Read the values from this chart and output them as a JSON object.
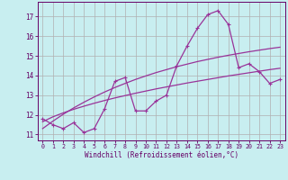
{
  "xlabel": "Windchill (Refroidissement éolien,°C)",
  "background_color": "#c8eef0",
  "grid_color": "#b0b0b0",
  "line_color": "#993399",
  "x_values": [
    0,
    1,
    2,
    3,
    4,
    5,
    6,
    7,
    8,
    9,
    10,
    11,
    12,
    13,
    14,
    15,
    16,
    17,
    18,
    19,
    20,
    21,
    22,
    23
  ],
  "main_y": [
    11.8,
    11.5,
    11.3,
    11.6,
    11.1,
    11.3,
    12.3,
    13.7,
    13.9,
    12.2,
    12.2,
    12.7,
    13.0,
    14.5,
    15.5,
    16.4,
    17.1,
    17.3,
    16.6,
    14.4,
    14.6,
    14.2,
    13.6,
    13.8
  ],
  "reg_y1": [
    11.65,
    11.9,
    12.1,
    12.28,
    12.44,
    12.59,
    12.73,
    12.86,
    12.98,
    13.1,
    13.21,
    13.32,
    13.42,
    13.52,
    13.62,
    13.71,
    13.8,
    13.89,
    13.98,
    14.06,
    14.14,
    14.22,
    14.3,
    14.37
  ],
  "reg_y2": [
    11.3,
    11.68,
    12.03,
    12.35,
    12.64,
    12.91,
    13.16,
    13.39,
    13.6,
    13.8,
    13.98,
    14.15,
    14.3,
    14.45,
    14.58,
    14.71,
    14.82,
    14.93,
    15.03,
    15.12,
    15.21,
    15.29,
    15.37,
    15.44
  ],
  "xlim": [
    -0.5,
    23.5
  ],
  "ylim": [
    10.7,
    17.75
  ],
  "yticks": [
    11,
    12,
    13,
    14,
    15,
    16,
    17
  ],
  "xticks": [
    0,
    1,
    2,
    3,
    4,
    5,
    6,
    7,
    8,
    9,
    10,
    11,
    12,
    13,
    14,
    15,
    16,
    17,
    18,
    19,
    20,
    21,
    22,
    23
  ]
}
